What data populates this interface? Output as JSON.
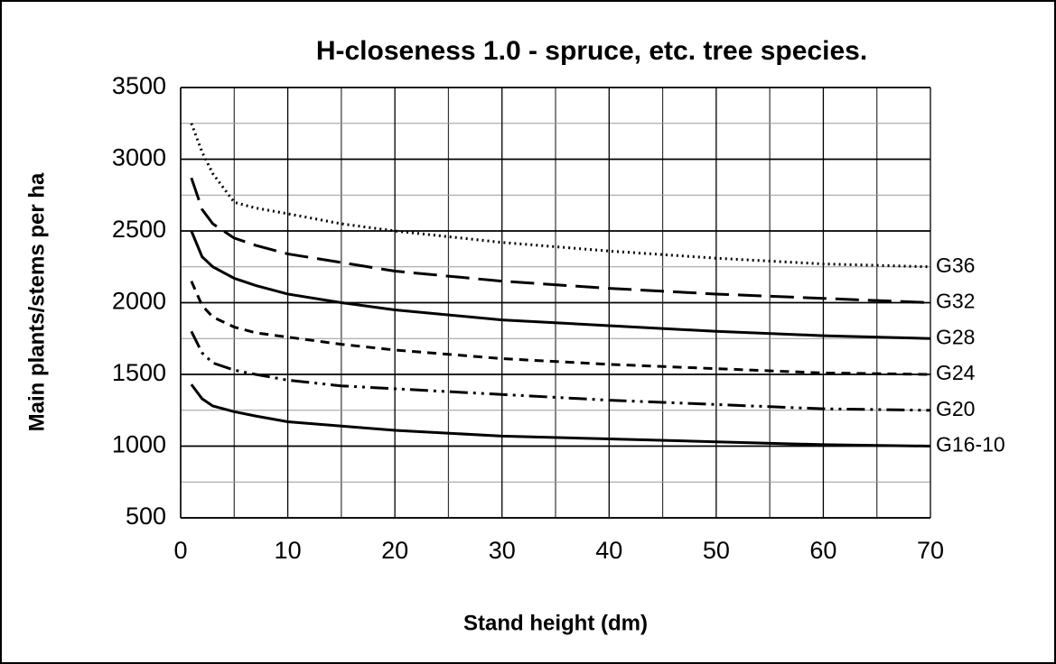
{
  "chart_data": {
    "type": "line",
    "title": "H-closeness 1.0 - spruce, etc. tree species.",
    "x_label": "Stand height (dm)",
    "y_label": "Main plants/stems per ha",
    "x": [
      1,
      2,
      3,
      5,
      7,
      10,
      15,
      20,
      30,
      40,
      50,
      60,
      70
    ],
    "series": [
      {
        "name": "G36",
        "color": "#000000",
        "dash": "dotted",
        "values": [
          3250,
          3050,
          2900,
          2700,
          2660,
          2620,
          2550,
          2500,
          2420,
          2360,
          2310,
          2270,
          2250
        ]
      },
      {
        "name": "G32",
        "color": "#000000",
        "dash": "long-dash",
        "values": [
          2870,
          2650,
          2550,
          2450,
          2400,
          2340,
          2280,
          2220,
          2150,
          2100,
          2060,
          2030,
          2000
        ]
      },
      {
        "name": "G28",
        "color": "#000000",
        "dash": "solid",
        "values": [
          2500,
          2320,
          2250,
          2170,
          2120,
          2060,
          2000,
          1950,
          1880,
          1840,
          1800,
          1770,
          1750
        ]
      },
      {
        "name": "G24",
        "color": "#000000",
        "dash": "short-dash",
        "values": [
          2150,
          1980,
          1900,
          1830,
          1790,
          1760,
          1710,
          1670,
          1610,
          1570,
          1540,
          1510,
          1500
        ]
      },
      {
        "name": "G20",
        "color": "#000000",
        "dash": "dash-dot-dot",
        "values": [
          1800,
          1650,
          1580,
          1530,
          1500,
          1460,
          1420,
          1400,
          1360,
          1320,
          1290,
          1260,
          1250
        ]
      },
      {
        "name": "G16-10",
        "color": "#000000",
        "dash": "solid",
        "values": [
          1430,
          1330,
          1280,
          1240,
          1210,
          1170,
          1140,
          1110,
          1070,
          1050,
          1030,
          1010,
          1000
        ]
      }
    ],
    "xlim": [
      0,
      70
    ],
    "xticks": [
      0,
      10,
      20,
      30,
      40,
      50,
      60,
      70
    ],
    "ylim": [
      500,
      3500
    ],
    "yticks": [
      500,
      1000,
      1500,
      2000,
      2500,
      3000,
      3500
    ],
    "grid": true,
    "minor_grid": true
  }
}
